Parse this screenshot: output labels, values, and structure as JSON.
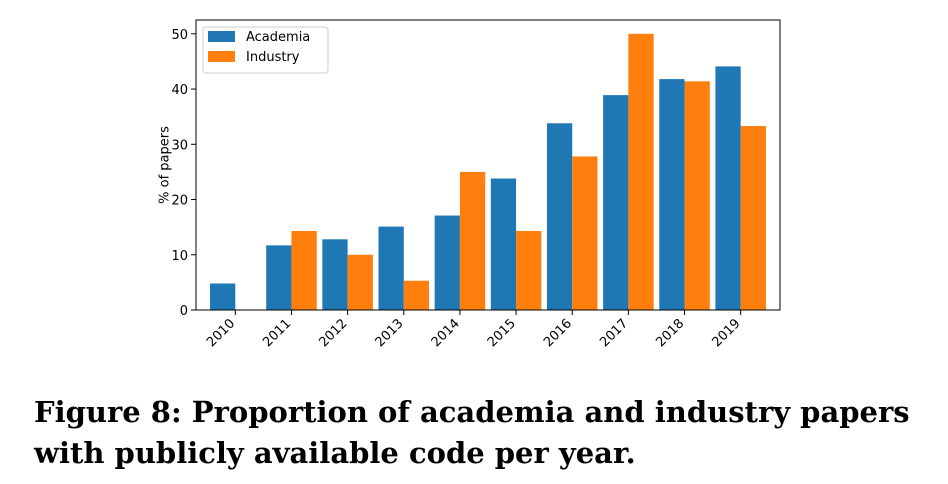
{
  "chart_data": {
    "type": "bar",
    "title": "",
    "xlabel": "",
    "ylabel": "% of papers",
    "ylim": [
      0,
      52.5
    ],
    "yticks": [
      0,
      10,
      20,
      30,
      40,
      50
    ],
    "categories": [
      "2010",
      "2011",
      "2012",
      "2013",
      "2014",
      "2015",
      "2016",
      "2017",
      "2018",
      "2019"
    ],
    "series": [
      {
        "name": "Academia",
        "color": "#1f77b4",
        "values": [
          4.8,
          11.7,
          12.8,
          15.1,
          17.1,
          23.8,
          33.8,
          38.9,
          41.8,
          44.1
        ]
      },
      {
        "name": "Industry",
        "color": "#ff7f0e",
        "values": [
          0.0,
          14.3,
          10.0,
          5.3,
          25.0,
          14.3,
          27.8,
          50.0,
          41.4,
          33.3
        ]
      }
    ],
    "legend_position": "top-left"
  },
  "caption": "Figure 8: Proportion of academia and industry papers with publicly available code per year."
}
